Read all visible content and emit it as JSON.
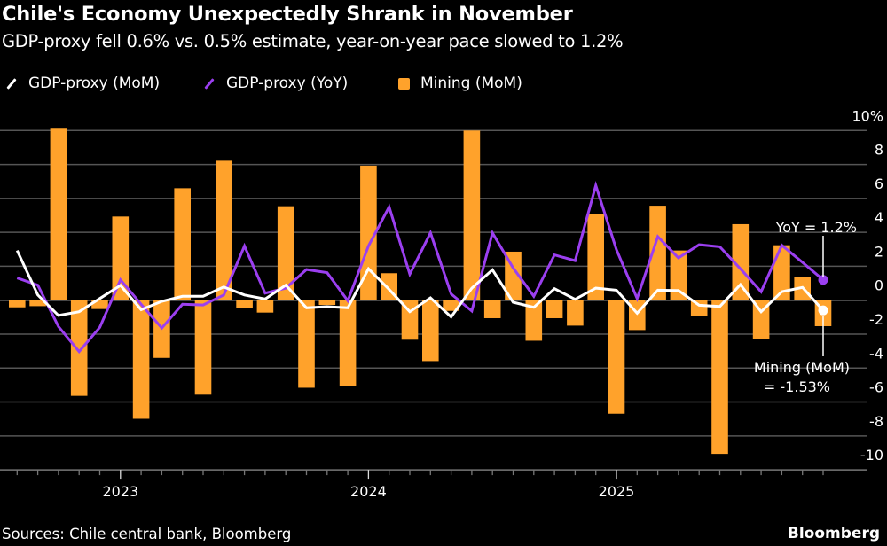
{
  "title": "Chile's Economy Unexpectedly Shrank in November",
  "subtitle": "GDP-proxy fell 0.6% vs. 0.5% estimate, year-on-year pace slowed to 1.2%",
  "legend": [
    {
      "label": "GDP-proxy (MoM)",
      "color": "#ffffff",
      "shape": "line"
    },
    {
      "label": "GDP-proxy (YoY)",
      "color": "#9b3ff0",
      "shape": "line"
    },
    {
      "label": "Mining (MoM)",
      "color": "#ffa22b",
      "shape": "square"
    }
  ],
  "footer": {
    "sources": "Sources: Chile central bank, Bloomberg",
    "brand": "Bloomberg"
  },
  "annotations": {
    "yoy": "YoY = 1.2%",
    "mining_line1": "Mining (MoM)",
    "mining_line2": "= -1.53%"
  },
  "chart_data": {
    "type": "bar+line",
    "title": "Chile's Economy Unexpectedly Shrank in November",
    "subtitle": "GDP-proxy fell 0.6% vs. 0.5% estimate, year-on-year pace slowed to 1.2%",
    "x_start": "2022-08",
    "x_end": "2025-11",
    "x_frequency": "monthly",
    "x_tick_labels": [
      "2023",
      "2024",
      "2025"
    ],
    "x_tick_dates": [
      "2023-01",
      "2024-01",
      "2025-01"
    ],
    "y_tick_labels": [
      "10%",
      "8",
      "6",
      "4",
      "2",
      "0",
      "-2",
      "-4",
      "-6",
      "-8",
      "-10"
    ],
    "y_ticks": [
      10,
      8,
      6,
      4,
      2,
      0,
      -2,
      -4,
      -6,
      -8,
      -10
    ],
    "ylim": [
      -10,
      10
    ],
    "y_axis_side": "right",
    "grid": true,
    "legend_placement": "top-left",
    "series": [
      {
        "name": "Mining (MoM)",
        "kind": "bar",
        "color": "#ffa22b",
        "values": [
          -0.42,
          -0.35,
          10.16,
          -5.64,
          -0.52,
          4.93,
          -6.99,
          -3.4,
          6.6,
          -5.57,
          8.22,
          -0.45,
          -0.73,
          5.54,
          -5.16,
          -0.28,
          -5.05,
          7.93,
          1.59,
          -2.33,
          -3.59,
          -0.63,
          10.0,
          -1.06,
          2.86,
          -2.39,
          -1.06,
          -1.5,
          5.07,
          -6.69,
          -1.76,
          5.57,
          2.93,
          -0.94,
          -9.06,
          4.48,
          -2.28,
          3.24,
          1.39,
          -1.53
        ]
      },
      {
        "name": "GDP-proxy (MoM)",
        "kind": "line",
        "color": "#ffffff",
        "values": [
          2.93,
          0.31,
          -0.9,
          -0.68,
          0.1,
          0.87,
          -0.56,
          -0.07,
          0.23,
          0.23,
          0.78,
          0.31,
          0.07,
          0.89,
          -0.45,
          -0.38,
          -0.45,
          1.85,
          0.63,
          -0.68,
          0.14,
          -0.99,
          0.71,
          1.79,
          -0.12,
          -0.42,
          0.68,
          0.05,
          0.71,
          0.59,
          -0.77,
          0.59,
          0.57,
          -0.3,
          -0.37,
          0.92,
          -0.68,
          0.5,
          0.75,
          -0.6
        ]
      },
      {
        "name": "GDP-proxy (YoY)",
        "kind": "line",
        "color": "#9b3ff0",
        "values": [
          1.31,
          0.89,
          -1.55,
          -3.03,
          -1.6,
          1.2,
          -0.24,
          -1.64,
          -0.24,
          -0.28,
          0.31,
          3.19,
          0.42,
          0.71,
          1.81,
          1.62,
          -0.03,
          3.2,
          5.5,
          1.53,
          3.97,
          0.37,
          -0.64,
          3.97,
          1.9,
          0.23,
          2.67,
          2.33,
          6.76,
          2.98,
          0.1,
          3.75,
          2.49,
          3.27,
          3.15,
          1.85,
          0.5,
          3.24,
          2.23,
          1.2
        ]
      }
    ],
    "annotations": [
      {
        "text": "YoY = 1.2%",
        "date": "2025-11",
        "value": 1.2
      },
      {
        "text": "Mining (MoM) = -1.53%",
        "date": "2025-11",
        "value": -1.53
      }
    ]
  }
}
